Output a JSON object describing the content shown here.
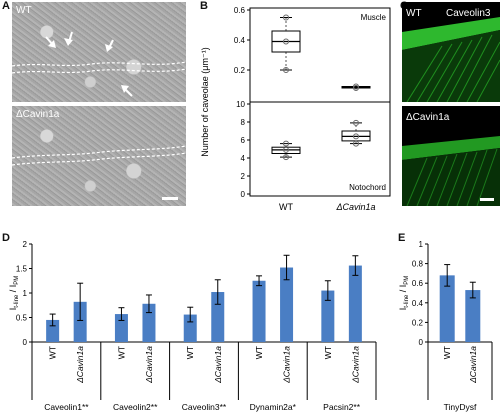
{
  "panel_labels": {
    "A": "A",
    "B": "B",
    "C": "C",
    "D": "D",
    "E": "E"
  },
  "panel_a": {
    "top_label": "WT",
    "bottom_label": "ΔCavin1a"
  },
  "panel_c": {
    "top_label": "WT",
    "top_stain": "Caveolin3",
    "bottom_label": "ΔCavin1a"
  },
  "chart_data": [
    {
      "panel": "B",
      "type": "box",
      "ylabel": "Number of caveolae (μm⁻¹)",
      "categories": [
        "WT",
        "ΔCavin1a"
      ],
      "subpanels": [
        {
          "annotation": "Muscle",
          "ylim": [
            0,
            0.6
          ],
          "yticks": [
            "0",
            "0.2",
            "0.4",
            "0.6"
          ],
          "boxes": [
            {
              "category": "WT",
              "min": 0.2,
              "q1": 0.32,
              "median": 0.39,
              "q3": 0.46,
              "max": 0.55,
              "points": [
                0.2,
                0.39,
                0.55
              ]
            },
            {
              "category": "ΔCavin1a",
              "min": 0.08,
              "q1": 0.08,
              "median": 0.085,
              "q3": 0.09,
              "max": 0.09,
              "points": [
                0.08,
                0.09
              ]
            }
          ]
        },
        {
          "annotation": "Notochord",
          "ylim": [
            0,
            10
          ],
          "yticks": [
            "0",
            "2",
            "4",
            "6",
            "8",
            "10"
          ],
          "boxes": [
            {
              "category": "WT",
              "min": 4.1,
              "q1": 4.5,
              "median": 4.9,
              "q3": 5.2,
              "max": 5.6,
              "points": [
                4.1,
                4.9,
                5.6
              ]
            },
            {
              "category": "ΔCavin1a",
              "min": 5.6,
              "q1": 5.9,
              "median": 6.4,
              "q3": 7.0,
              "max": 7.9,
              "points": [
                5.6,
                6.4,
                7.9
              ]
            }
          ]
        }
      ]
    },
    {
      "panel": "D",
      "type": "bar",
      "ylabel_main": "I",
      "ylabel_sub": "t-line",
      "ylabel_sep": " / I",
      "ylabel_sub2": "PM",
      "ylim": [
        0,
        2
      ],
      "yticks": [
        "0",
        "0.5",
        "1",
        "1.5",
        "2"
      ],
      "bar_color": "#4a7ec4",
      "groups": [
        {
          "name": "Caveolin1**",
          "bars": [
            {
              "label": "WT",
              "value": 0.45,
              "err": 0.12
            },
            {
              "label": "ΔCavin1a",
              "value": 0.82,
              "err": 0.38
            }
          ]
        },
        {
          "name": "Caveolin2**",
          "bars": [
            {
              "label": "WT",
              "value": 0.57,
              "err": 0.13
            },
            {
              "label": "ΔCavin1a",
              "value": 0.78,
              "err": 0.18
            }
          ]
        },
        {
          "name": "Caveolin3**",
          "bars": [
            {
              "label": "WT",
              "value": 0.56,
              "err": 0.15
            },
            {
              "label": "ΔCavin1a",
              "value": 1.02,
              "err": 0.25
            }
          ]
        },
        {
          "name": "Dynamin2a*",
          "bars": [
            {
              "label": "WT",
              "value": 1.25,
              "err": 0.1
            },
            {
              "label": "ΔCavin1a",
              "value": 1.52,
              "err": 0.25
            }
          ]
        },
        {
          "name": "Pacsin2**",
          "bars": [
            {
              "label": "WT",
              "value": 1.05,
              "err": 0.2
            },
            {
              "label": "ΔCavin1a",
              "value": 1.56,
              "err": 0.2
            }
          ]
        }
      ]
    },
    {
      "panel": "E",
      "type": "bar",
      "ylabel_main": "I",
      "ylabel_sub": "t-line",
      "ylabel_sep": " / I",
      "ylabel_sub2": "PM",
      "ylim": [
        0,
        1
      ],
      "yticks": [
        "0",
        "0.2",
        "0.4",
        "0.6",
        "0.8",
        "1"
      ],
      "bar_color": "#4a7ec4",
      "groups": [
        {
          "name": "TinyDysf",
          "bars": [
            {
              "label": "WT",
              "value": 0.68,
              "err": 0.11
            },
            {
              "label": "ΔCavin1a",
              "value": 0.53,
              "err": 0.08
            }
          ]
        }
      ]
    }
  ]
}
